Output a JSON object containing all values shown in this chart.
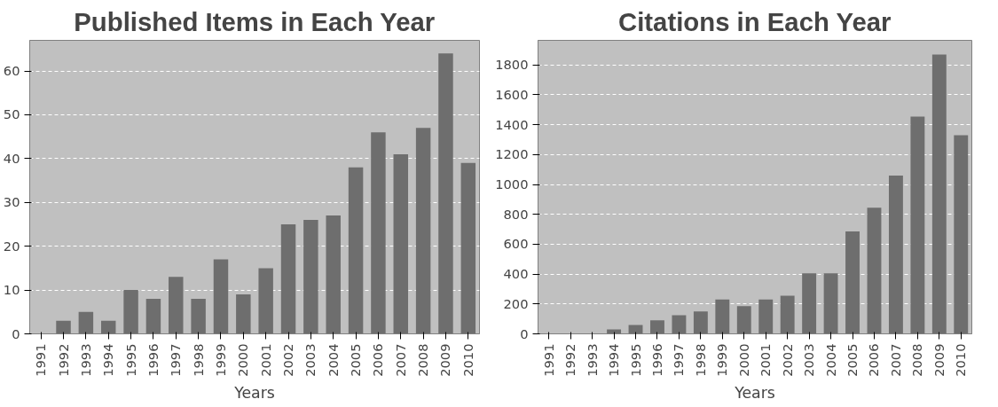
{
  "chart_data": [
    {
      "type": "bar",
      "title": "Published Items in Each Year",
      "xlabel": "Years",
      "categories": [
        "1991",
        "1992",
        "1993",
        "1994",
        "1995",
        "1996",
        "1997",
        "1998",
        "1999",
        "2000",
        "2001",
        "2002",
        "2003",
        "2004",
        "2005",
        "2006",
        "2007",
        "2008",
        "2009",
        "2010"
      ],
      "series": [
        {
          "color": "#6e6e6e",
          "values": [
            0,
            3,
            5,
            3,
            10,
            8,
            13,
            8,
            17,
            9,
            15,
            25,
            26,
            27,
            38,
            46,
            41,
            47,
            64,
            39
          ]
        }
      ],
      "ylim": [
        0,
        67
      ],
      "yticks": [
        0,
        10,
        20,
        30,
        40,
        50,
        60
      ],
      "grid": "y"
    },
    {
      "type": "bar",
      "title": "Citations in Each Year",
      "xlabel": "Years",
      "categories": [
        "1991",
        "1992",
        "1993",
        "1994",
        "1995",
        "1996",
        "1997",
        "1998",
        "1999",
        "2000",
        "2001",
        "2002",
        "2003",
        "2004",
        "2005",
        "2006",
        "2007",
        "2008",
        "2009",
        "2010"
      ],
      "series": [
        {
          "color": "#6e6e6e",
          "values": [
            0,
            0,
            0,
            30,
            60,
            90,
            125,
            150,
            230,
            185,
            230,
            255,
            405,
            405,
            685,
            845,
            1060,
            1455,
            1870,
            1330
          ]
        }
      ],
      "ylim": [
        0,
        1965
      ],
      "yticks": [
        0,
        200,
        400,
        600,
        800,
        1000,
        1200,
        1400,
        1600,
        1800
      ],
      "grid": "y"
    }
  ]
}
